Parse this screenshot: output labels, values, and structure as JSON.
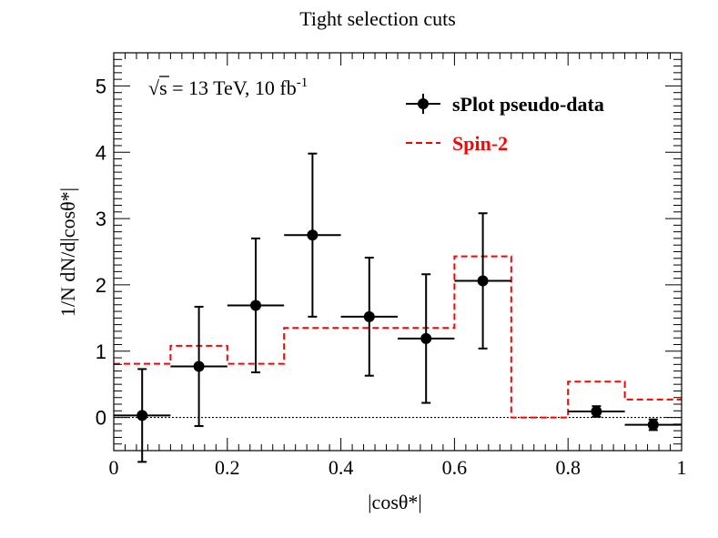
{
  "chart_data": {
    "type": "histogram",
    "title": "Tight selection cuts",
    "xlabel": "|cosθ*|",
    "ylabel": "1/N dN/d|cosθ*|",
    "xlim": [
      0,
      1
    ],
    "ylim": [
      -0.5,
      5.5
    ],
    "x_major_ticks": [
      0,
      0.2,
      0.4,
      0.6,
      0.8,
      1
    ],
    "x_tick_labels": [
      "0",
      "0.2",
      "0.4",
      "0.6",
      "0.8",
      "1"
    ],
    "y_major_ticks": [
      0,
      1,
      2,
      3,
      4,
      5
    ],
    "y_tick_labels": [
      "0",
      "1",
      "2",
      "3",
      "4",
      "5"
    ],
    "annotation": {
      "sqrt": "√",
      "s": "s",
      "rest": " = 13 TeV, 10 fb",
      "sup": "-1"
    },
    "legend": [
      {
        "label": "sPlot pseudo-data",
        "color": "#000000",
        "style": "marker-errorbar"
      },
      {
        "label": "Spin-2",
        "color": "#ff0000",
        "style": "dashed"
      }
    ],
    "series": [
      {
        "name": "sPlot pseudo-data",
        "color": "#000000",
        "x": [
          0.05,
          0.15,
          0.25,
          0.35,
          0.45,
          0.55,
          0.65,
          0.75,
          0.85,
          0.95
        ],
        "y": [
          0.03,
          0.77,
          1.69,
          2.75,
          1.52,
          1.19,
          2.06,
          null,
          0.09,
          -0.11
        ],
        "y_err": [
          0.7,
          0.9,
          1.01,
          1.23,
          0.89,
          0.97,
          1.02,
          null,
          0.08,
          0.08
        ],
        "x_err": 0.05
      },
      {
        "name": "Spin-2",
        "color": "#ff0000",
        "bin_edges": [
          0,
          0.1,
          0.2,
          0.3,
          0.4,
          0.5,
          0.6,
          0.7,
          0.8,
          0.9,
          1.0
        ],
        "values": [
          0.81,
          1.08,
          0.81,
          1.35,
          1.35,
          1.35,
          2.43,
          0.0,
          0.54,
          0.27
        ]
      }
    ]
  }
}
